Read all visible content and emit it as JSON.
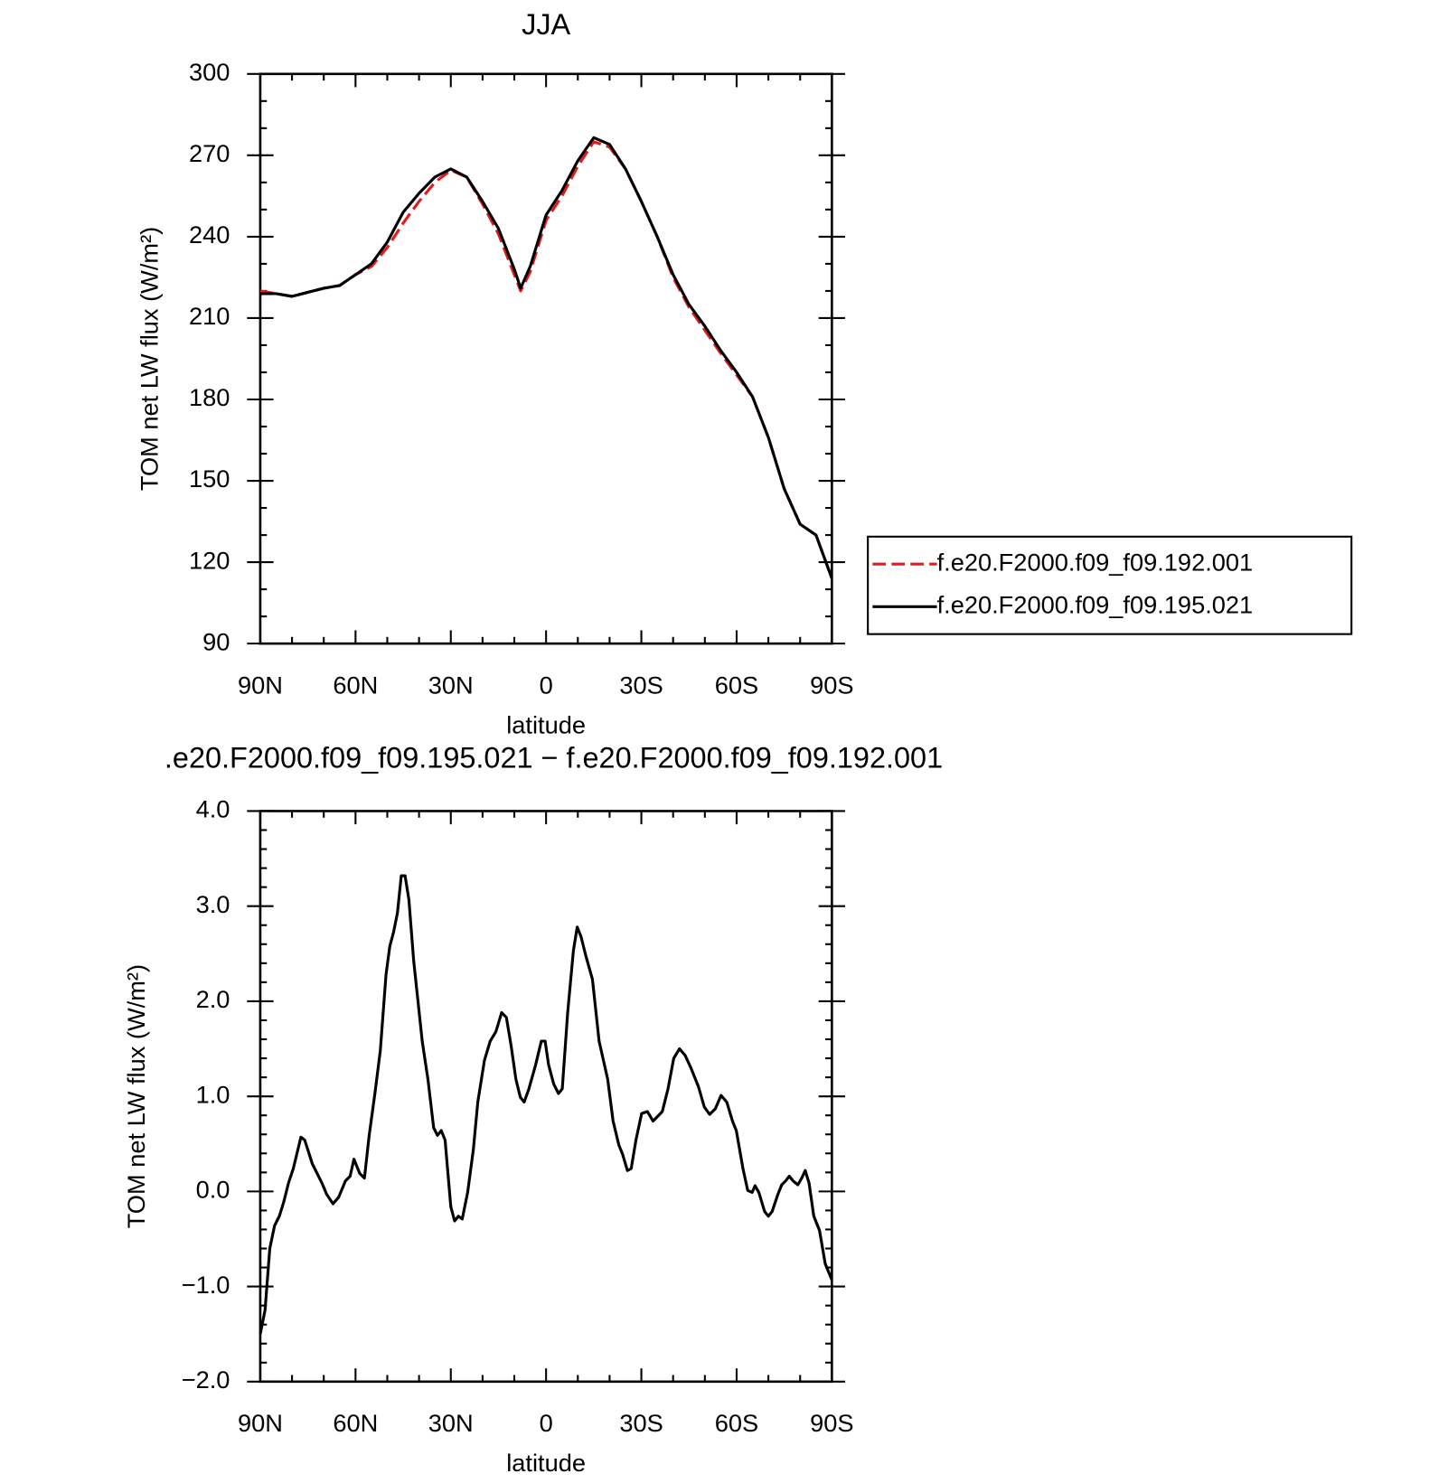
{
  "chart_data": [
    {
      "type": "line",
      "title": "JJA",
      "xlabel": "latitude",
      "ylabel": "TOM net LW flux (W/m²)",
      "x": [
        90,
        85,
        80,
        75,
        70,
        65,
        60,
        55,
        50,
        45,
        40,
        35,
        30,
        25,
        20,
        15,
        10,
        8,
        5,
        0,
        -5,
        -10,
        -15,
        -20,
        -25,
        -30,
        -35,
        -40,
        -45,
        -50,
        -55,
        -60,
        -65,
        -70,
        -75,
        -80,
        -85,
        -90
      ],
      "series": [
        {
          "name": "f.e20.F2000.f09_f09.192.001",
          "color": "#e41a1c",
          "dash": true,
          "values": [
            220,
            219,
            218,
            219.5,
            221,
            222,
            226,
            229,
            236,
            245,
            253,
            260,
            264.5,
            262,
            252,
            241,
            226,
            220,
            227,
            246,
            255,
            266,
            275,
            273,
            265,
            253,
            240,
            225,
            214,
            205.5,
            197,
            189,
            181,
            166,
            147,
            134,
            130,
            114
          ]
        },
        {
          "name": "f.e20.F2000.f09_f09.195.021",
          "color": "#000000",
          "dash": false,
          "values": [
            219,
            219,
            218,
            219.5,
            221,
            222,
            226,
            230,
            238,
            249,
            256,
            262,
            265,
            262,
            253,
            243,
            228,
            221,
            229,
            248,
            257,
            268,
            276.5,
            274,
            265,
            253,
            240,
            226,
            215,
            207,
            198,
            190,
            181,
            166,
            147,
            134,
            130,
            114
          ]
        }
      ],
      "xlim": [
        90,
        -90
      ],
      "xticks": [
        {
          "value": 90,
          "label": "90N"
        },
        {
          "value": 60,
          "label": "60N"
        },
        {
          "value": 30,
          "label": "30N"
        },
        0,
        {
          "value": -30,
          "label": "30S"
        },
        {
          "value": -60,
          "label": "60S"
        },
        {
          "value": -90,
          "label": "90S"
        }
      ],
      "ylim": [
        90,
        300
      ],
      "yticks": [
        90,
        120,
        150,
        180,
        210,
        240,
        270,
        300
      ],
      "legend": "right"
    },
    {
      "type": "line",
      "title": ".e20.F2000.f09_f09.195.021 − f.e20.F2000.f09_f09.192.001",
      "xlabel": "latitude",
      "ylabel": "TOM net LW flux (W/m²)",
      "x": [
        90,
        88.5,
        87,
        85.5,
        84,
        82.6,
        81.1,
        79.6,
        77.2,
        76,
        73.6,
        70.6,
        69.1,
        67.1,
        65.3,
        63.2,
        61.7,
        60.5,
        58.7,
        57.2,
        55.7,
        53.9,
        52.2,
        50.4,
        49.2,
        48,
        46.8,
        45.6,
        44.4,
        43.2,
        41.7,
        39,
        37.2,
        35.4,
        34.2,
        33,
        31.8,
        30,
        28.8,
        27.6,
        26.4,
        24.7,
        22.9,
        21.5,
        19.4,
        17.6,
        15.8,
        14,
        12.5,
        11,
        9.5,
        8.1,
        6.9,
        5.4,
        3.3,
        1.5,
        0.3,
        -0.8,
        -2.4,
        -3.9,
        -5.1,
        -6.8,
        -8.6,
        -9.8,
        -11,
        -12.5,
        -14.6,
        -16.7,
        -19.4,
        -21.1,
        -22.9,
        -24.1,
        -25.6,
        -26.8,
        -28.3,
        -30.1,
        -31.9,
        -33.7,
        -36.6,
        -38.4,
        -40.2,
        -42,
        -43.8,
        -45.6,
        -48,
        -49.8,
        -51.5,
        -53.3,
        -55.1,
        -56.9,
        -58.7,
        -59.9,
        -62,
        -63.5,
        -64.9,
        -65.8,
        -67,
        -68.8,
        -70,
        -71.2,
        -73,
        -74.2,
        -75.4,
        -76.6,
        -77.8,
        -79.3,
        -80.5,
        -81.6,
        -82.8,
        -84.3,
        -86.1,
        -87.9,
        -90
      ],
      "series": [
        {
          "color": "#000000",
          "dash": false,
          "values": [
            -1.5,
            -1.25,
            -0.6,
            -0.36,
            -0.26,
            -0.11,
            0.09,
            0.24,
            0.57,
            0.54,
            0.29,
            0.09,
            -0.03,
            -0.13,
            -0.06,
            0.11,
            0.16,
            0.34,
            0.19,
            0.14,
            0.59,
            1.03,
            1.48,
            2.28,
            2.58,
            2.73,
            2.93,
            3.32,
            3.32,
            3.07,
            2.43,
            1.58,
            1.18,
            0.67,
            0.59,
            0.64,
            0.54,
            -0.16,
            -0.31,
            -0.26,
            -0.29,
            -0.01,
            0.44,
            0.94,
            1.38,
            1.58,
            1.68,
            1.88,
            1.83,
            1.53,
            1.18,
            0.99,
            0.94,
            1.08,
            1.33,
            1.58,
            1.58,
            1.33,
            1.13,
            1.03,
            1.08,
            1.88,
            2.53,
            2.78,
            2.68,
            2.48,
            2.23,
            1.58,
            1.18,
            0.74,
            0.49,
            0.39,
            0.22,
            0.24,
            0.54,
            0.82,
            0.84,
            0.74,
            0.84,
            1.08,
            1.4,
            1.5,
            1.43,
            1.3,
            1.1,
            0.89,
            0.81,
            0.87,
            1.01,
            0.94,
            0.74,
            0.64,
            0.24,
            0.01,
            -0.01,
            0.06,
            -0.01,
            -0.21,
            -0.26,
            -0.21,
            -0.03,
            0.07,
            0.11,
            0.16,
            0.11,
            0.07,
            0.14,
            0.22,
            0.09,
            -0.26,
            -0.41,
            -0.76,
            -0.93
          ]
        }
      ],
      "xlim": [
        90,
        -90
      ],
      "xticks": [
        {
          "value": 90,
          "label": "90N"
        },
        {
          "value": 60,
          "label": "60N"
        },
        {
          "value": 30,
          "label": "30N"
        },
        0,
        {
          "value": -30,
          "label": "30S"
        },
        {
          "value": -60,
          "label": "60S"
        },
        {
          "value": -90,
          "label": "90S"
        }
      ],
      "ylim": [
        -2,
        4
      ],
      "yticks": [
        {
          "value": -2,
          "label": "−2.0"
        },
        {
          "value": -1,
          "label": "−1.0"
        },
        {
          "value": 0,
          "label": "0.0"
        },
        {
          "value": 1,
          "label": "1.0"
        },
        {
          "value": 2,
          "label": "2.0"
        },
        {
          "value": 3,
          "label": "3.0"
        },
        {
          "value": 4,
          "label": "4.0"
        }
      ]
    }
  ]
}
